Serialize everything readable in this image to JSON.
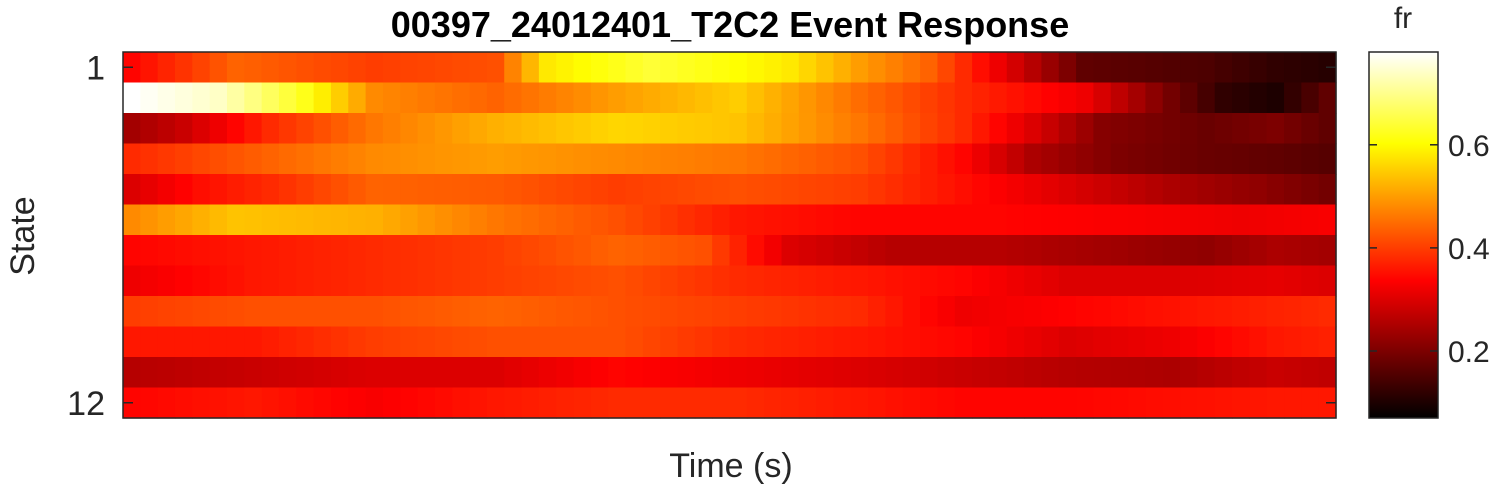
{
  "chart_data": {
    "type": "heatmap",
    "title": "00397_24012401_T2C2 Event Response",
    "xlabel": "Time (s)",
    "ylabel": "State",
    "colorbar_label": "fr",
    "colormap": "hot",
    "clim": [
      0.07,
      0.78
    ],
    "rows": 12,
    "cols": 70,
    "y_ticks": [
      {
        "row": 1,
        "label": "1"
      },
      {
        "row": 12,
        "label": "12"
      }
    ],
    "colorbar_ticks": [
      {
        "value": 0.2,
        "label": "0.2"
      },
      {
        "value": 0.4,
        "label": "0.4"
      },
      {
        "value": 0.6,
        "label": "0.6"
      }
    ],
    "row_profiles": [
      [
        [
          0,
          0.34
        ],
        [
          6,
          0.44
        ],
        [
          14,
          0.4
        ],
        [
          21,
          0.42
        ],
        [
          24,
          0.58
        ],
        [
          30,
          0.64
        ],
        [
          38,
          0.58
        ],
        [
          42,
          0.5
        ],
        [
          46,
          0.44
        ],
        [
          50,
          0.32
        ],
        [
          55,
          0.17
        ],
        [
          62,
          0.15
        ],
        [
          66,
          0.12
        ],
        [
          69,
          0.11
        ]
      ],
      [
        [
          0,
          0.78
        ],
        [
          5,
          0.74
        ],
        [
          10,
          0.62
        ],
        [
          14,
          0.48
        ],
        [
          21,
          0.44
        ],
        [
          28,
          0.5
        ],
        [
          35,
          0.55
        ],
        [
          42,
          0.45
        ],
        [
          48,
          0.38
        ],
        [
          55,
          0.32
        ],
        [
          60,
          0.19
        ],
        [
          63,
          0.12
        ],
        [
          66,
          0.1
        ],
        [
          69,
          0.17
        ]
      ],
      [
        [
          0,
          0.24
        ],
        [
          3,
          0.28
        ],
        [
          8,
          0.38
        ],
        [
          14,
          0.46
        ],
        [
          21,
          0.52
        ],
        [
          28,
          0.56
        ],
        [
          35,
          0.54
        ],
        [
          42,
          0.46
        ],
        [
          48,
          0.38
        ],
        [
          52,
          0.3
        ],
        [
          56,
          0.21
        ],
        [
          62,
          0.18
        ],
        [
          66,
          0.2
        ],
        [
          69,
          0.17
        ]
      ],
      [
        [
          0,
          0.38
        ],
        [
          8,
          0.44
        ],
        [
          14,
          0.48
        ],
        [
          21,
          0.5
        ],
        [
          28,
          0.48
        ],
        [
          35,
          0.46
        ],
        [
          42,
          0.42
        ],
        [
          48,
          0.34
        ],
        [
          52,
          0.25
        ],
        [
          57,
          0.2
        ],
        [
          62,
          0.18
        ],
        [
          66,
          0.17
        ],
        [
          69,
          0.16
        ]
      ],
      [
        [
          0,
          0.3
        ],
        [
          4,
          0.35
        ],
        [
          8,
          0.38
        ],
        [
          14,
          0.44
        ],
        [
          21,
          0.43
        ],
        [
          28,
          0.4
        ],
        [
          35,
          0.42
        ],
        [
          42,
          0.4
        ],
        [
          48,
          0.35
        ],
        [
          54,
          0.3
        ],
        [
          60,
          0.25
        ],
        [
          65,
          0.22
        ],
        [
          69,
          0.19
        ]
      ],
      [
        [
          0,
          0.48
        ],
        [
          6,
          0.54
        ],
        [
          14,
          0.52
        ],
        [
          21,
          0.46
        ],
        [
          28,
          0.42
        ],
        [
          35,
          0.36
        ],
        [
          42,
          0.34
        ],
        [
          50,
          0.34
        ],
        [
          58,
          0.33
        ],
        [
          64,
          0.32
        ],
        [
          69,
          0.33
        ]
      ],
      [
        [
          0,
          0.34
        ],
        [
          7,
          0.36
        ],
        [
          14,
          0.38
        ],
        [
          21,
          0.4
        ],
        [
          28,
          0.44
        ],
        [
          33,
          0.42
        ],
        [
          38,
          0.3
        ],
        [
          44,
          0.26
        ],
        [
          50,
          0.26
        ],
        [
          56,
          0.24
        ],
        [
          62,
          0.22
        ],
        [
          66,
          0.25
        ],
        [
          69,
          0.24
        ]
      ],
      [
        [
          0,
          0.32
        ],
        [
          7,
          0.36
        ],
        [
          14,
          0.38
        ],
        [
          21,
          0.4
        ],
        [
          28,
          0.42
        ],
        [
          35,
          0.38
        ],
        [
          42,
          0.36
        ],
        [
          48,
          0.34
        ],
        [
          54,
          0.3
        ],
        [
          60,
          0.3
        ],
        [
          66,
          0.31
        ],
        [
          69,
          0.3
        ]
      ],
      [
        [
          0,
          0.4
        ],
        [
          7,
          0.42
        ],
        [
          14,
          0.42
        ],
        [
          21,
          0.44
        ],
        [
          28,
          0.42
        ],
        [
          35,
          0.4
        ],
        [
          42,
          0.38
        ],
        [
          48,
          0.32
        ],
        [
          55,
          0.34
        ],
        [
          62,
          0.36
        ],
        [
          69,
          0.38
        ]
      ],
      [
        [
          0,
          0.36
        ],
        [
          7,
          0.36
        ],
        [
          14,
          0.4
        ],
        [
          21,
          0.42
        ],
        [
          28,
          0.42
        ],
        [
          35,
          0.38
        ],
        [
          42,
          0.36
        ],
        [
          48,
          0.34
        ],
        [
          54,
          0.3
        ],
        [
          60,
          0.32
        ],
        [
          66,
          0.36
        ],
        [
          69,
          0.37
        ]
      ],
      [
        [
          0,
          0.26
        ],
        [
          7,
          0.28
        ],
        [
          14,
          0.3
        ],
        [
          21,
          0.3
        ],
        [
          28,
          0.34
        ],
        [
          35,
          0.32
        ],
        [
          42,
          0.3
        ],
        [
          48,
          0.28
        ],
        [
          54,
          0.26
        ],
        [
          60,
          0.25
        ],
        [
          66,
          0.28
        ],
        [
          69,
          0.27
        ]
      ],
      [
        [
          0,
          0.34
        ],
        [
          7,
          0.36
        ],
        [
          14,
          0.33
        ],
        [
          21,
          0.36
        ],
        [
          28,
          0.38
        ],
        [
          35,
          0.38
        ],
        [
          42,
          0.36
        ],
        [
          48,
          0.34
        ],
        [
          54,
          0.34
        ],
        [
          60,
          0.35
        ],
        [
          66,
          0.36
        ],
        [
          69,
          0.36
        ]
      ]
    ]
  }
}
